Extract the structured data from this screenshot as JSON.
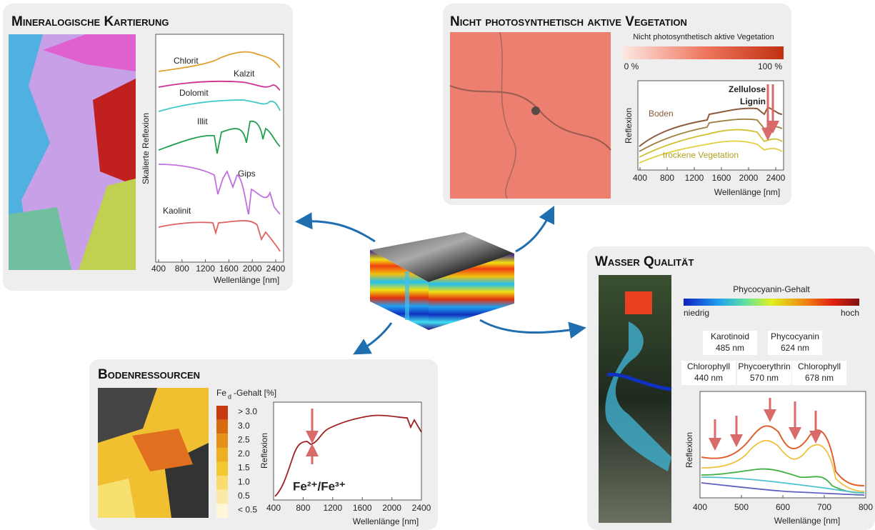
{
  "mineral": {
    "title": "Mineralogische Kartierung",
    "y_label": "Skalierte Reflexion",
    "x_label": "Wellenlänge [nm]",
    "xticks": [
      400,
      800,
      1200,
      1600,
      2000,
      2400
    ],
    "curves": [
      "Chlorit",
      "Kalzit",
      "Dolomit",
      "Illit",
      "Gips",
      "Kaolinit"
    ]
  },
  "npv": {
    "title": "Nicht photosynthetisch aktive Vegetation",
    "colorbar_title": "Nicht photosynthetisch aktive Vegetation",
    "colorbar_min": "0 %",
    "colorbar_max": "100 %",
    "annotations": [
      "Zellulose",
      "Lignin"
    ],
    "curves": [
      "Boden",
      "trockene Vegetation"
    ],
    "y_label": "Reflexion",
    "x_label": "Wellenlänge [nm]",
    "xticks": [
      400,
      800,
      1200,
      1600,
      2000,
      2400
    ]
  },
  "water": {
    "title": "Wasser Qualität",
    "colorbar_title": "Phycocyanin-Gehalt",
    "colorbar_min": "niedrig",
    "colorbar_max": "hoch",
    "pigments": [
      {
        "name": "Karotinoid",
        "wavelength": "485 nm"
      },
      {
        "name": "Phycocyanin",
        "wavelength": "624 nm"
      },
      {
        "name": "Chlorophyll",
        "wavelength": "440 nm"
      },
      {
        "name": "Phycoerythrin",
        "wavelength": "570 nm"
      },
      {
        "name": "Chlorophyll",
        "wavelength": "678 nm"
      }
    ],
    "y_label": "Reflexion",
    "x_label": "Wellenlänge [nm]",
    "xticks": [
      400,
      500,
      600,
      700,
      800
    ]
  },
  "soil": {
    "title": "Bodenressourcen",
    "legend_title": {
      "main": "Fe",
      "sub": "d",
      "rest": "-Gehalt [%]"
    },
    "legend": [
      "> 3.0",
      "3.0",
      "2.5",
      "2.0",
      "1.5",
      "1.0",
      "0.5",
      "< 0.5"
    ],
    "annotation": "Fe²⁺/Fe³⁺",
    "y_label": "Reflexion",
    "x_label": "Wellenlänge [nm]",
    "xticks": [
      400,
      800,
      1200,
      1600,
      2000,
      2400
    ]
  }
}
